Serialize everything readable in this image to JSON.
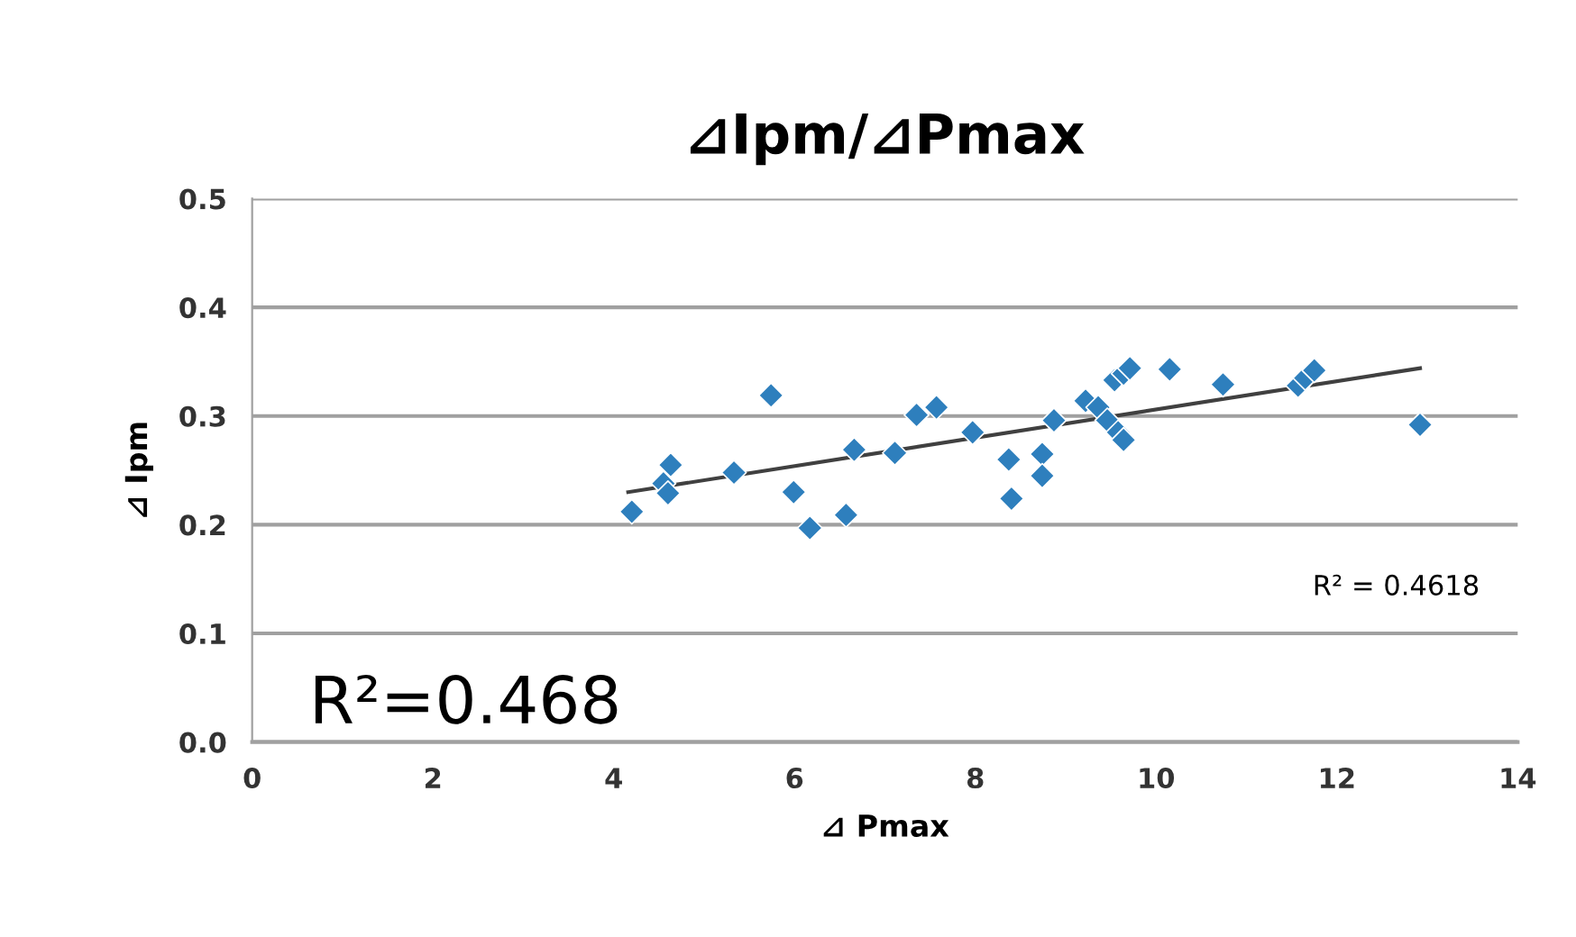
{
  "chart_data": {
    "type": "scatter",
    "title": "⊿Ipm/⊿Pmax",
    "xlabel": "⊿ Pmax",
    "ylabel": "⊿ Ipm",
    "annotations": [
      "R² = 0.4618",
      "R²=0.468"
    ],
    "xlim": [
      0,
      14
    ],
    "xticks": [
      0,
      2,
      4,
      6,
      8,
      10,
      12,
      14
    ],
    "ylim": [
      0,
      0.5
    ],
    "yticks": [
      {
        "value": 0,
        "label": "0.0"
      },
      0.1,
      0.2,
      0.3,
      0.4,
      0.5
    ],
    "grid": "y",
    "legend": false,
    "series": [
      {
        "marker": "diamond",
        "color": "#2e7fbd",
        "x": [
          4.2,
          4.55,
          4.6,
          4.63,
          5.33,
          5.74,
          5.99,
          6.17,
          6.57,
          6.66,
          7.11,
          7.35,
          7.57,
          7.97,
          8.37,
          8.4,
          8.74,
          8.74,
          8.87,
          9.22,
          9.36,
          9.46,
          9.58,
          9.64,
          9.54,
          9.64,
          9.71,
          10.15,
          10.74,
          11.57,
          11.65,
          11.75,
          12.92
        ],
        "values": [
          0.212,
          0.238,
          0.229,
          0.255,
          0.248,
          0.319,
          0.23,
          0.197,
          0.209,
          0.269,
          0.266,
          0.301,
          0.308,
          0.285,
          0.26,
          0.224,
          0.265,
          0.245,
          0.296,
          0.314,
          0.308,
          0.296,
          0.285,
          0.278,
          0.333,
          0.339,
          0.344,
          0.343,
          0.329,
          0.328,
          0.335,
          0.342,
          0.292
        ]
      },
      {
        "type": "line",
        "marker": "none",
        "color": "#404040",
        "line_style": "solid",
        "x": [
          4.16,
          12.92
        ],
        "values": [
          0.23,
          0.344
        ]
      }
    ]
  }
}
